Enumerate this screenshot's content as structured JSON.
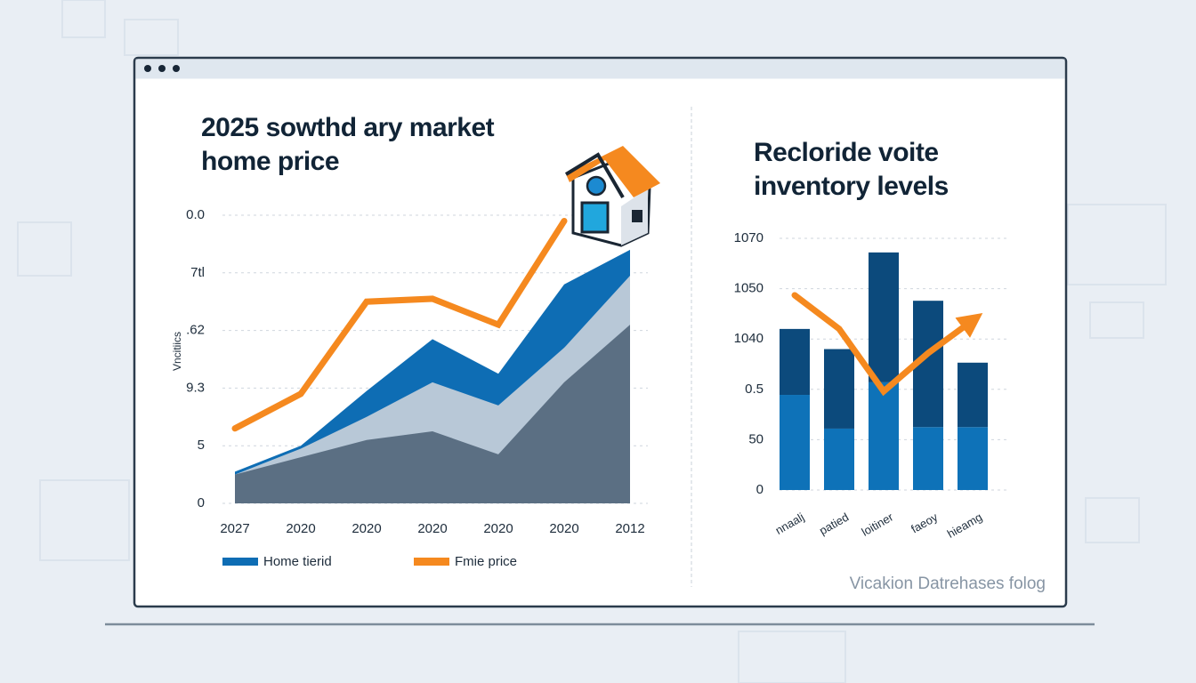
{
  "chart_data": [
    {
      "type": "area",
      "title": "2025 sowthd ary market home price",
      "y_label": "Vncitiics",
      "categories": [
        "2027",
        "2020",
        "2020",
        "2020",
        "2020",
        "2020",
        "2012"
      ],
      "ylim": [
        0,
        5
      ],
      "yticks": [
        0,
        {
          "value": 1,
          "label": "5"
        },
        {
          "value": 2,
          "label": "9.3"
        },
        {
          "value": 3,
          "label": ".62"
        },
        {
          "value": 4,
          "label": "7tl"
        },
        {
          "value": 5,
          "label": "0.0"
        }
      ],
      "grid": true,
      "series": [
        {
          "name": "Home tierid",
          "type": "area",
          "color": "#0e6db4",
          "values": [
            0.55,
            1.0,
            1.95,
            2.85,
            2.25,
            3.8,
            4.4
          ]
        },
        {
          "type": "area",
          "color": "#b8c8d7",
          "values": [
            0.5,
            0.95,
            1.5,
            2.1,
            1.7,
            2.7,
            3.95
          ]
        },
        {
          "type": "area",
          "color": "#5b6f83",
          "values": [
            0.5,
            0.8,
            1.1,
            1.25,
            0.85,
            2.1,
            3.1
          ]
        },
        {
          "name": "Fmie price",
          "type": "line",
          "color": "#f5891f",
          "values": [
            1.3,
            1.9,
            3.5,
            3.55,
            3.1,
            4.9,
            null
          ]
        }
      ]
    },
    {
      "type": "bar",
      "title": "Recloride voite inventory levels",
      "annotation": "Vicakion Datrehases folog",
      "categories": [
        "nnaalj",
        "patied",
        "loitiner",
        "faeoy",
        "hieamg"
      ],
      "ylim": [
        0,
        5
      ],
      "yticks": [
        0,
        {
          "value": 1,
          "label": "50"
        },
        {
          "value": 2,
          "label": "0.5"
        },
        {
          "value": 3,
          "label": "1040"
        },
        {
          "value": 4,
          "label": "1050"
        },
        {
          "value": 5,
          "label": "1070"
        }
      ],
      "grid": true,
      "stacked": true,
      "series": [
        {
          "type": "bar",
          "color": "#0e72b8",
          "values": [
            1.89,
            1.22,
            2.14,
            1.25,
            1.25
          ]
        },
        {
          "type": "bar",
          "color": "#0c4a7c",
          "values": [
            1.31,
            1.58,
            2.58,
            2.51,
            1.28
          ]
        },
        {
          "type": "line",
          "color": "#f5891f",
          "values": [
            3.87,
            3.2,
            1.96,
            2.72,
            3.37
          ]
        }
      ]
    }
  ]
}
